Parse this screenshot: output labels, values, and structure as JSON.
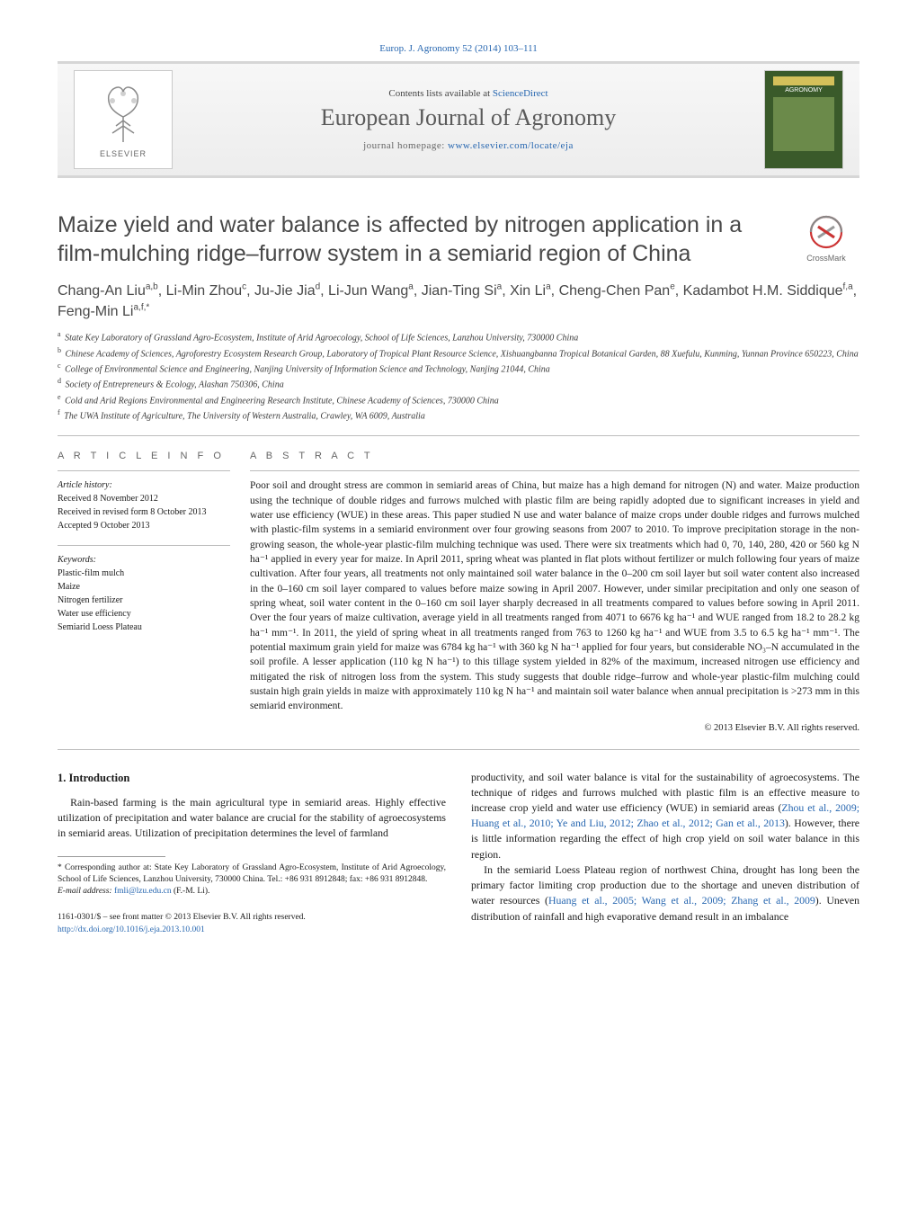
{
  "top_citation": "Europ. J. Agronomy 52 (2014) 103–111",
  "header": {
    "contents_prefix": "Contents lists available at ",
    "contents_link": "ScienceDirect",
    "journal_name": "European Journal of Agronomy",
    "homepage_prefix": "journal homepage: ",
    "homepage_link": "www.elsevier.com/locate/eja",
    "elsevier_label": "ELSEVIER",
    "cover_title": "AGRONOMY"
  },
  "crossmark_label": "CrossMark",
  "title": "Maize yield and water balance is affected by nitrogen application in a film-mulching ridge–furrow system in a semiarid region of China",
  "authors_html": "Chang-An Liu<sup>a,b</sup>, Li-Min Zhou<sup>c</sup>, Ju-Jie Jia<sup>d</sup>, Li-Jun Wang<sup>a</sup>, Jian-Ting Si<sup>a</sup>, Xin Li<sup>a</sup>, Cheng-Chen Pan<sup>e</sup>, Kadambot H.M. Siddique<sup>f,a</sup>, Feng-Min Li<sup>a,f,*</sup>",
  "affiliations": [
    {
      "sup": "a",
      "text": "State Key Laboratory of Grassland Agro-Ecosystem, Institute of Arid Agroecology, School of Life Sciences, Lanzhou University, 730000 China"
    },
    {
      "sup": "b",
      "text": "Chinese Academy of Sciences, Agroforestry Ecosystem Research Group, Laboratory of Tropical Plant Resource Science, Xishuangbanna Tropical Botanical Garden, 88 Xuefulu, Kunming, Yunnan Province 650223, China"
    },
    {
      "sup": "c",
      "text": "College of Environmental Science and Engineering, Nanjing University of Information Science and Technology, Nanjing 21044, China"
    },
    {
      "sup": "d",
      "text": "Society of Entrepreneurs & Ecology, Alashan 750306, China"
    },
    {
      "sup": "e",
      "text": "Cold and Arid Regions Environmental and Engineering Research Institute, Chinese Academy of Sciences, 730000 China"
    },
    {
      "sup": "f",
      "text": "The UWA Institute of Agriculture, The University of Western Australia, Crawley, WA 6009, Australia"
    }
  ],
  "article_info": {
    "heading": "A R T I C L E   I N F O",
    "history_title": "Article history:",
    "history": [
      "Received 8 November 2012",
      "Received in revised form 8 October 2013",
      "Accepted 9 October 2013"
    ],
    "keywords_title": "Keywords:",
    "keywords": [
      "Plastic-film mulch",
      "Maize",
      "Nitrogen fertilizer",
      "Water use efficiency",
      "Semiarid Loess Plateau"
    ]
  },
  "abstract": {
    "heading": "A B S T R A C T",
    "text": "Poor soil and drought stress are common in semiarid areas of China, but maize has a high demand for nitrogen (N) and water. Maize production using the technique of double ridges and furrows mulched with plastic film are being rapidly adopted due to significant increases in yield and water use efficiency (WUE) in these areas. This paper studied N use and water balance of maize crops under double ridges and furrows mulched with plastic-film systems in a semiarid environment over four growing seasons from 2007 to 2010. To improve precipitation storage in the non-growing season, the whole-year plastic-film mulching technique was used. There were six treatments which had 0, 70, 140, 280, 420 or 560 kg N ha⁻¹ applied in every year for maize. In April 2011, spring wheat was planted in flat plots without fertilizer or mulch following four years of maize cultivation. After four years, all treatments not only maintained soil water balance in the 0–200 cm soil layer but soil water content also increased in the 0–160 cm soil layer compared to values before maize sowing in April 2007. However, under similar precipitation and only one season of spring wheat, soil water content in the 0–160 cm soil layer sharply decreased in all treatments compared to values before sowing in April 2011. Over the four years of maize cultivation, average yield in all treatments ranged from 4071 to 6676 kg ha⁻¹ and WUE ranged from 18.2 to 28.2 kg ha⁻¹ mm⁻¹. In 2011, the yield of spring wheat in all treatments ranged from 763 to 1260 kg ha⁻¹ and WUE from 3.5 to 6.5 kg ha⁻¹ mm⁻¹. The potential maximum grain yield for maize was 6784 kg ha⁻¹ with 360 kg N ha⁻¹ applied for four years, but considerable NO₃–N accumulated in the soil profile. A lesser application (110 kg N ha⁻¹) to this tillage system yielded in 82% of the maximum, increased nitrogen use efficiency and mitigated the risk of nitrogen loss from the system. This study suggests that double ridge–furrow and whole-year plastic-film mulching could sustain high grain yields in maize with approximately 110 kg N ha⁻¹ and maintain soil water balance when annual precipitation is >273 mm in this semiarid environment.",
    "copyright": "© 2013 Elsevier B.V. All rights reserved."
  },
  "section1": {
    "heading": "1.  Introduction",
    "p1": "Rain-based farming is the main agricultural type in semiarid areas. Highly effective utilization of precipitation and water balance are crucial for the stability of agroecosystems in semiarid areas. Utilization of precipitation determines the level of farmland",
    "p2_pre": "productivity, and soil water balance is vital for the sustainability of agroecosystems. The technique of ridges and furrows mulched with plastic film is an effective measure to increase crop yield and water use efficiency (WUE) in semiarid areas (",
    "p2_cite": "Zhou et al., 2009; Huang et al., 2010; Ye and Liu, 2012; Zhao et al., 2012; Gan et al., 2013",
    "p2_post": "). However, there is little information regarding the effect of high crop yield on soil water balance in this region.",
    "p3_pre": "In the semiarid Loess Plateau region of northwest China, drought has long been the primary factor limiting crop production due to the shortage and uneven distribution of water resources (",
    "p3_cite": "Huang et al., 2005; Wang et al., 2009; Zhang et al., 2009",
    "p3_post": "). Uneven distribution of rainfall and high evaporative demand result in an imbalance"
  },
  "footnotes": {
    "corr": "* Corresponding author at: State Key Laboratory of Grassland Agro-Ecosystem, Institute of Arid Agroecology, School of Life Sciences, Lanzhou University, 730000 China. Tel.: +86 931 8912848; fax: +86 931 8912848.",
    "email_label": "E-mail address: ",
    "email": "fmli@lzu.edu.cn",
    "email_suffix": " (F.-M. Li)."
  },
  "footer": {
    "line1": "1161-0301/$ – see front matter © 2013 Elsevier B.V. All rights reserved.",
    "doi": "http://dx.doi.org/10.1016/j.eja.2013.10.001"
  },
  "style": {
    "link_color": "#2666b0",
    "rule_color": "#bcbcbc",
    "header_bg_top": "#f7f7f7",
    "header_bg_bottom": "#ededed",
    "text_color": "#1a1a1a",
    "heading_color": "#484848"
  }
}
